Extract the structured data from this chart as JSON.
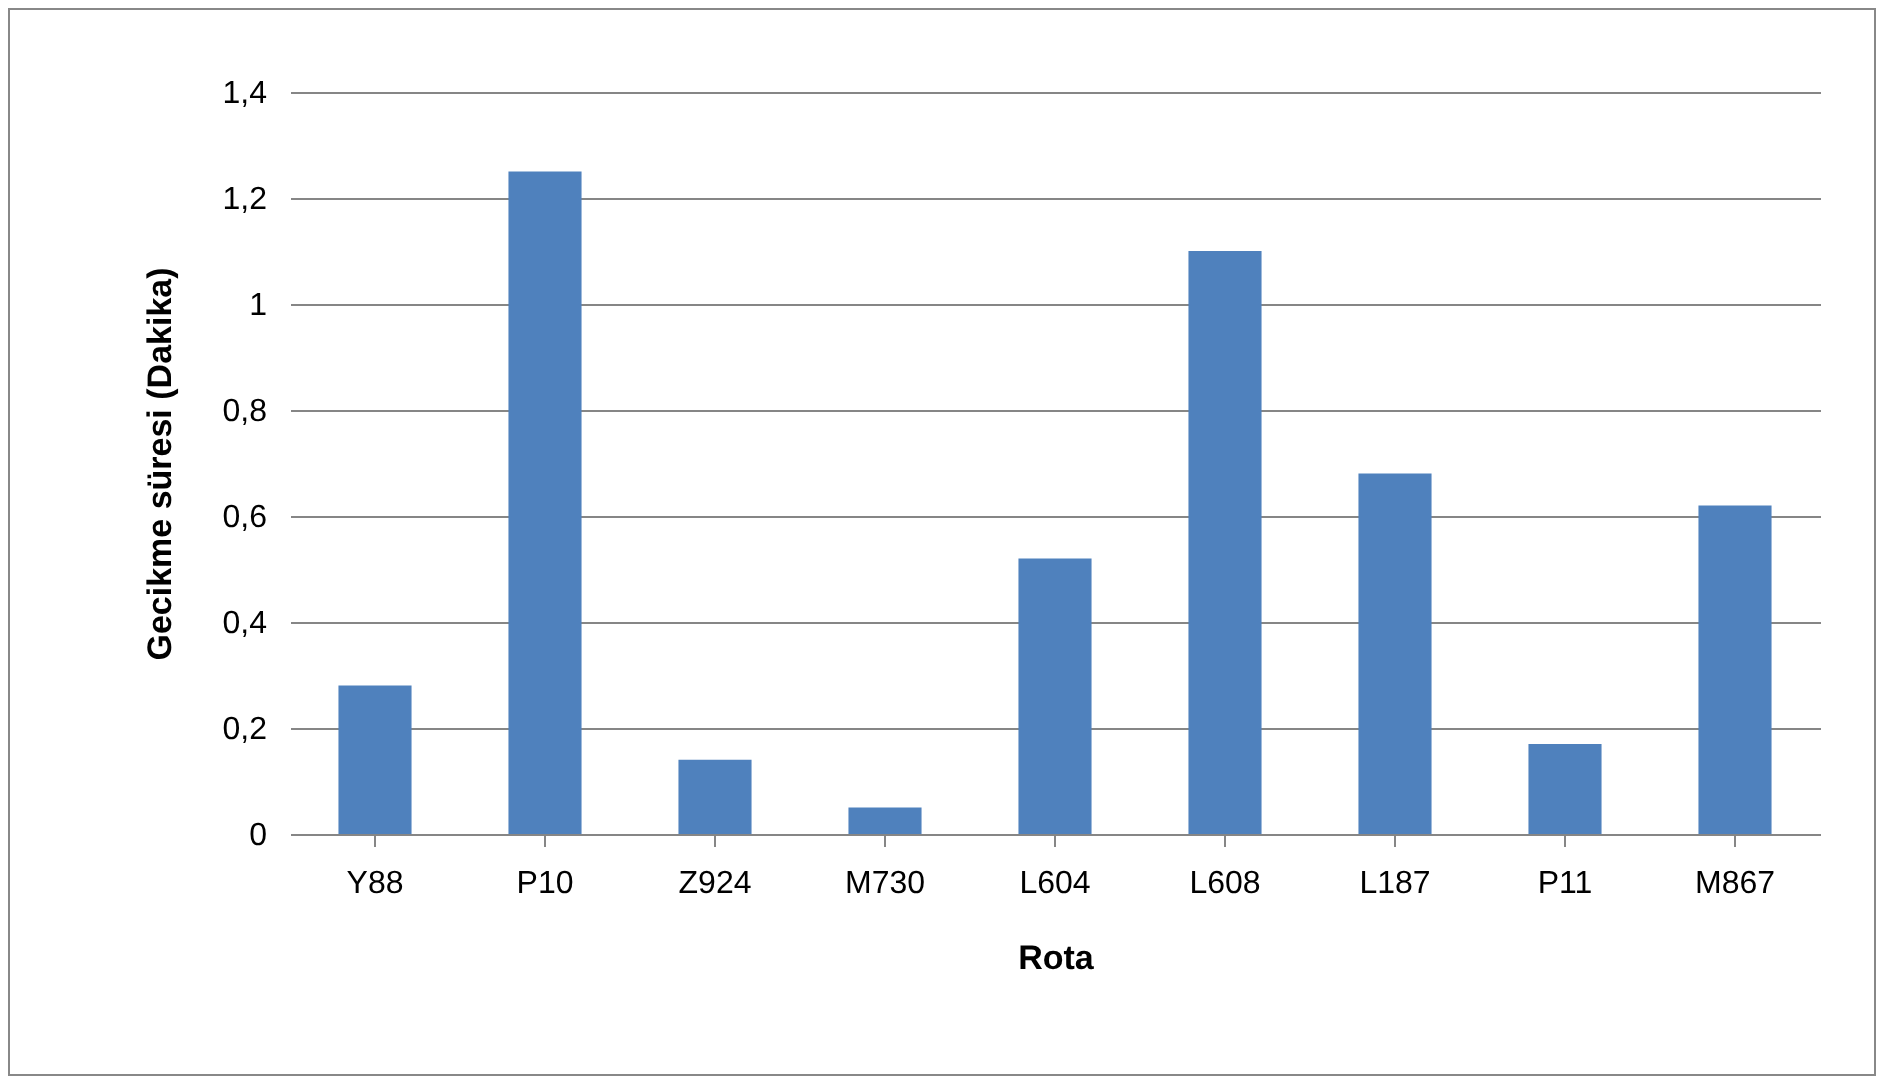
{
  "chart_data": {
    "type": "bar",
    "xlabel": "Rota",
    "ylabel": "Gecikme süresi (Dakika)",
    "categories": [
      "Y88",
      "P10",
      "Z924",
      "M730",
      "L604",
      "L608",
      "L187",
      "P11",
      "M867"
    ],
    "series": [
      {
        "color": "#4f81bd",
        "values": [
          0.28,
          1.25,
          0.14,
          0.05,
          0.52,
          1.1,
          0.68,
          0.17,
          0.62
        ]
      }
    ],
    "ylim": [
      0,
      1.4
    ],
    "yticks": [
      {
        "value": 0,
        "label": "0"
      },
      {
        "value": 0.2,
        "label": "0,2"
      },
      {
        "value": 0.4,
        "label": "0,4"
      },
      {
        "value": 0.6,
        "label": "0,6"
      },
      {
        "value": 0.8,
        "label": "0,8"
      },
      {
        "value": 1,
        "label": "1"
      },
      {
        "value": 1.2,
        "label": "1,2"
      },
      {
        "value": 1.4,
        "label": "1,4"
      }
    ],
    "grid": "y"
  }
}
